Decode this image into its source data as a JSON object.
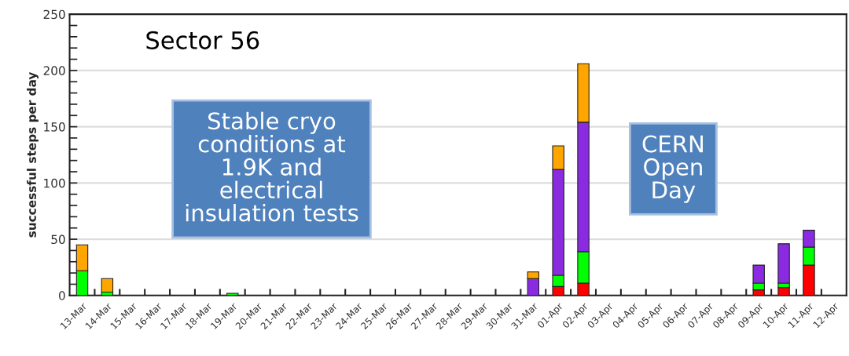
{
  "chart_data": {
    "type": "bar",
    "stacked": true,
    "ylabel": "successful steps per day",
    "categories": [
      "13-Mar",
      "14-Mar",
      "15-Mar",
      "16-Mar",
      "17-Mar",
      "18-Mar",
      "19-Mar",
      "20-Mar",
      "21-Mar",
      "22-Mar",
      "23-Mar",
      "24-Mar",
      "25-Mar",
      "26-Mar",
      "27-Mar",
      "28-Mar",
      "29-Mar",
      "30-Mar",
      "31-Mar",
      "01-Apr",
      "02-Apr",
      "03-Apr",
      "04-Apr",
      "05-Apr",
      "06-Apr",
      "07-Apr",
      "08-Apr",
      "09-Apr",
      "10-Apr",
      "11-Apr",
      "12-Apr"
    ],
    "series": [
      {
        "color": "#ff0000",
        "values": [
          null,
          null,
          null,
          null,
          null,
          null,
          null,
          null,
          null,
          null,
          null,
          null,
          null,
          null,
          null,
          null,
          null,
          null,
          null,
          8,
          11,
          null,
          null,
          null,
          null,
          null,
          null,
          5,
          7,
          27,
          null
        ]
      },
      {
        "color": "#00ff00",
        "values": [
          22,
          3,
          null,
          null,
          null,
          null,
          2,
          null,
          null,
          null,
          null,
          null,
          null,
          null,
          null,
          null,
          null,
          null,
          null,
          10,
          28,
          null,
          null,
          null,
          null,
          null,
          null,
          6,
          4,
          16,
          null
        ]
      },
      {
        "color": "#8a2be2",
        "values": [
          null,
          null,
          null,
          null,
          null,
          null,
          null,
          null,
          null,
          null,
          null,
          null,
          null,
          null,
          null,
          null,
          null,
          null,
          15,
          94,
          115,
          null,
          null,
          null,
          null,
          null,
          null,
          16,
          35,
          15,
          null
        ]
      },
      {
        "color": "#ffa500",
        "values": [
          23,
          12,
          null,
          null,
          null,
          null,
          null,
          null,
          null,
          null,
          null,
          null,
          null,
          null,
          null,
          null,
          null,
          null,
          6,
          21,
          52,
          null,
          null,
          null,
          null,
          null,
          null,
          null,
          null,
          null,
          null
        ]
      }
    ],
    "ylim": [
      0,
      250
    ],
    "yticks": [
      0,
      {
        "value": 10,
        "label": null
      },
      {
        "value": 20,
        "label": null
      },
      {
        "value": 30,
        "label": null
      },
      {
        "value": 40,
        "label": null
      },
      50,
      {
        "value": 60,
        "label": null
      },
      {
        "value": 70,
        "label": null
      },
      {
        "value": 80,
        "label": null
      },
      {
        "value": 90,
        "label": null
      },
      100,
      {
        "value": 110,
        "label": null
      },
      {
        "value": 120,
        "label": null
      },
      {
        "value": 130,
        "label": null
      },
      {
        "value": 140,
        "label": null
      },
      150,
      {
        "value": 160,
        "label": null
      },
      {
        "value": 170,
        "label": null
      },
      {
        "value": 180,
        "label": null
      },
      {
        "value": 190,
        "label": null
      },
      200,
      {
        "value": 210,
        "label": null
      },
      {
        "value": 220,
        "label": null
      },
      {
        "value": 230,
        "label": null
      },
      {
        "value": 240,
        "label": null
      },
      250
    ],
    "grid": "y",
    "annotations": [
      "Sector 56",
      "Stable cryo conditions at 1.9K and electrical insulation tests",
      "CERN Open Day"
    ]
  }
}
